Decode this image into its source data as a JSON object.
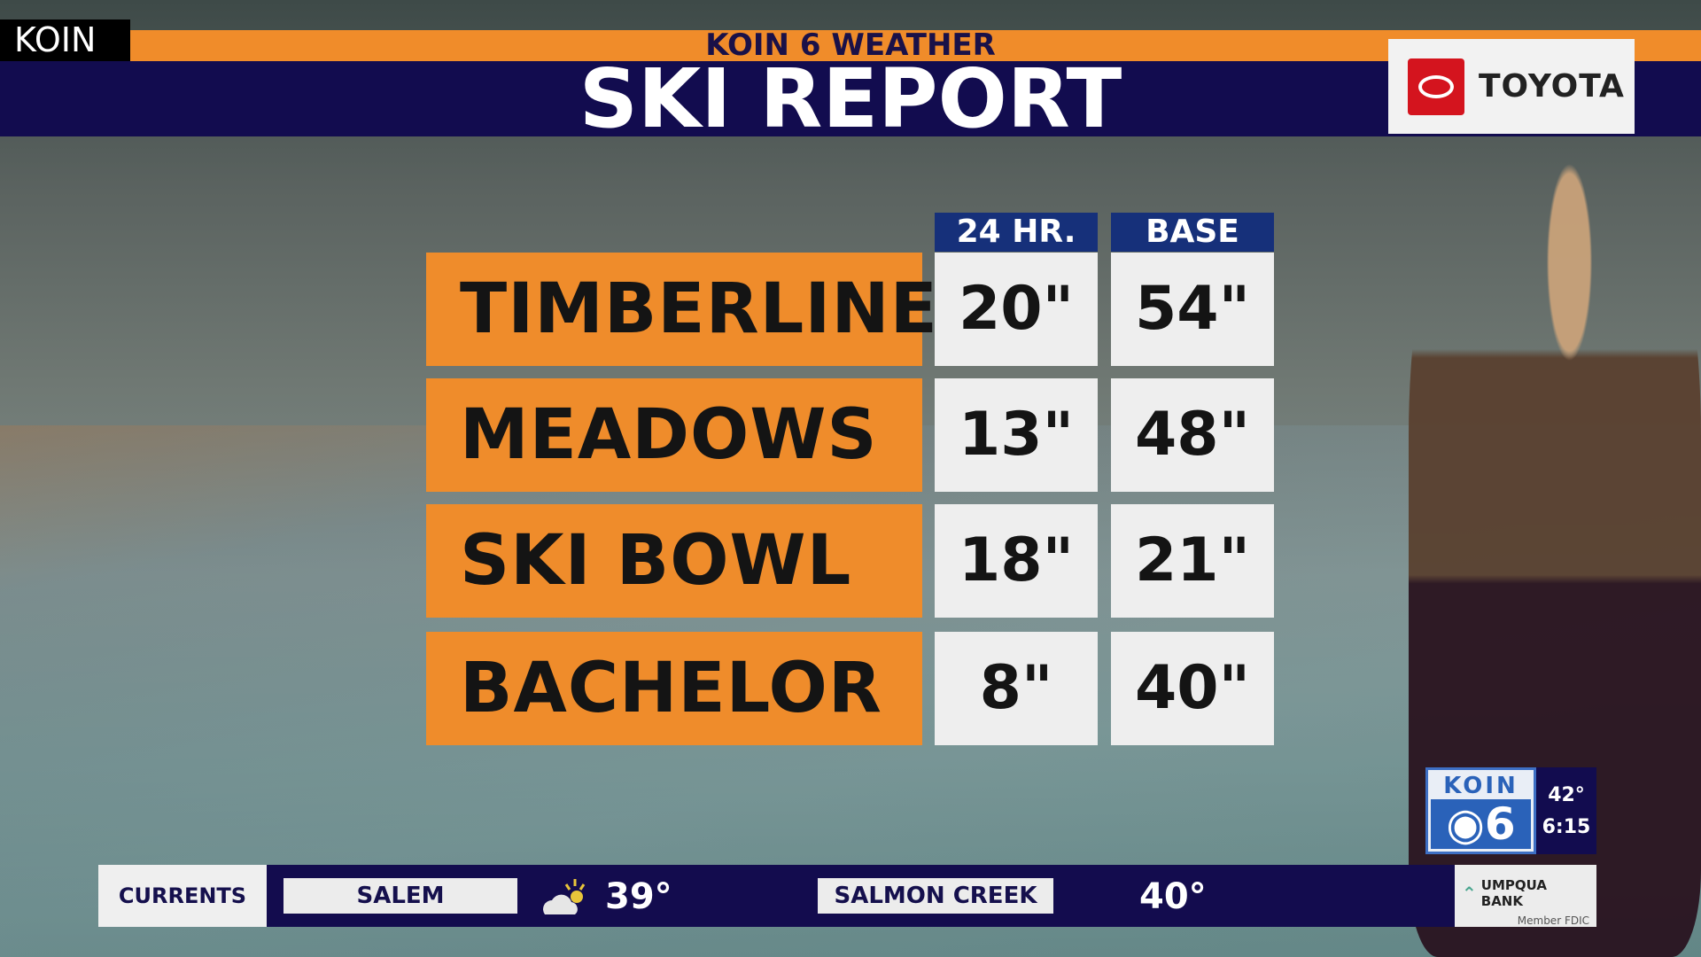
{
  "header": {
    "station_tag": "KOIN",
    "segment_label": "KOIN 6 WEATHER",
    "title": "SKI REPORT",
    "sponsor": "TOYOTA"
  },
  "table": {
    "columns": [
      "24 HR.",
      "BASE"
    ],
    "rows": [
      {
        "name": "TIMBERLINE",
        "hr24": "20\"",
        "base": "54\""
      },
      {
        "name": "MEADOWS",
        "hr24": "13\"",
        "base": "48\""
      },
      {
        "name": "SKI BOWL",
        "hr24": "18\"",
        "base": "21\""
      },
      {
        "name": "BACHELOR",
        "hr24": "8\"",
        "base": "40\""
      }
    ]
  },
  "ticker": {
    "label": "CURRENTS",
    "items": [
      {
        "city": "SALEM",
        "temp": "39°",
        "icon": "partly-cloudy-icon"
      },
      {
        "city": "SALMON CREEK",
        "temp": "40°"
      }
    ],
    "sponsor": "UMPQUA BANK",
    "sponsor_sub": "Member FDIC"
  },
  "bug": {
    "logo_top": "KOIN",
    "logo_bottom": "◉6",
    "temp": "42°",
    "time": "6:15"
  },
  "colors": {
    "navy": "#120c4f",
    "orange": "#ef8c2b",
    "header_blue": "#16307a"
  }
}
